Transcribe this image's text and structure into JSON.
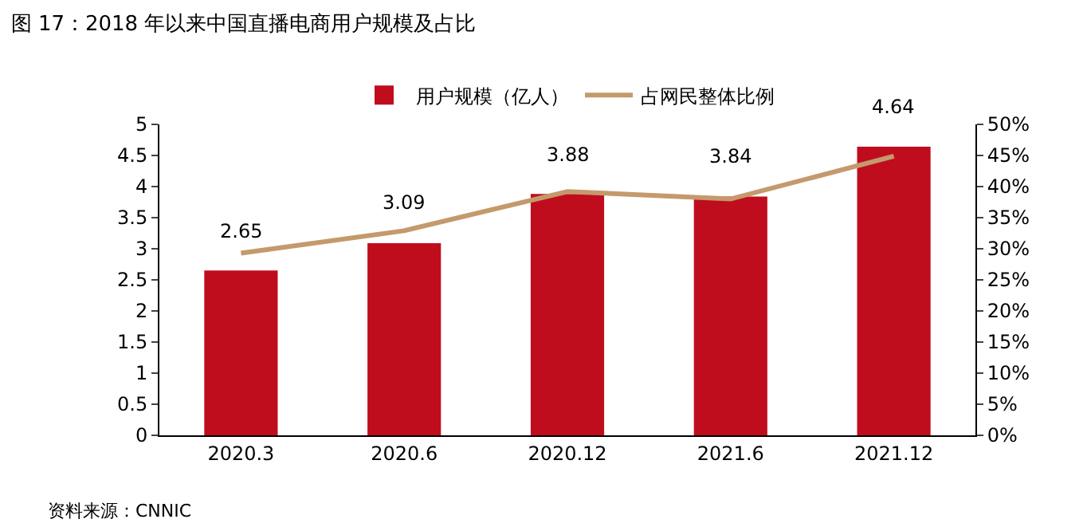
{
  "chart_data": {
    "type": "bar",
    "title": "图 17：2018 年以来中国直播电商用户规模及占比",
    "categories": [
      "2020.3",
      "2020.6",
      "2020.12",
      "2021.6",
      "2021.12"
    ],
    "series": [
      {
        "name": "用户规模（亿人）",
        "color": "#c00d1e",
        "values": [
          2.65,
          3.09,
          3.88,
          3.84,
          4.64
        ],
        "value_labels": [
          "2.65",
          "3.09",
          "3.88",
          "3.84",
          "4.64"
        ]
      },
      {
        "name": "占网民整体比例",
        "type": "line",
        "axis": "y2",
        "color": "#c49a6c",
        "values": [
          29.3,
          32.9,
          39.2,
          38.0,
          44.9
        ]
      }
    ],
    "ylim": [
      0,
      5
    ],
    "yticks": [
      0,
      0.5,
      1,
      1.5,
      2,
      2.5,
      3,
      3.5,
      4,
      4.5,
      5
    ],
    "y2lim": [
      0,
      50
    ],
    "y2ticks": [
      {
        "value": 0,
        "label": "0%"
      },
      {
        "value": 5,
        "label": "5%"
      },
      {
        "value": 10,
        "label": "10%"
      },
      {
        "value": 15,
        "label": "15%"
      },
      {
        "value": 20,
        "label": "20%"
      },
      {
        "value": 25,
        "label": "25%"
      },
      {
        "value": 30,
        "label": "30%"
      },
      {
        "value": 35,
        "label": "35%"
      },
      {
        "value": 40,
        "label": "40%"
      },
      {
        "value": 45,
        "label": "45%"
      },
      {
        "value": 50,
        "label": "50%"
      }
    ],
    "legend": "top",
    "grid": false,
    "marker": "none",
    "line_style": "solid",
    "annotations": [
      "资料来源：CNNIC"
    ]
  }
}
